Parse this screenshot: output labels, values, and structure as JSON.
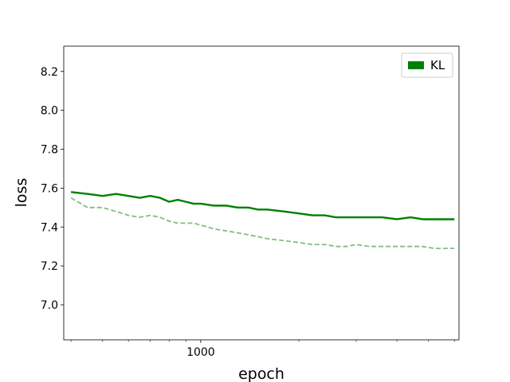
{
  "chart_data": {
    "type": "line",
    "xlabel": "epoch",
    "ylabel": "loss",
    "x_scale": "log",
    "x_range": [
      380,
      6200
    ],
    "ylim": [
      6.82,
      8.33
    ],
    "x_tick_labels": [
      {
        "value": 1000,
        "label": "1000"
      }
    ],
    "x_minor_ticks": [
      400,
      500,
      600,
      700,
      800,
      900,
      2000,
      3000,
      4000,
      5000,
      6000
    ],
    "y_ticks": [
      {
        "value": 7.0,
        "label": "7.0"
      },
      {
        "value": 7.2,
        "label": "7.2"
      },
      {
        "value": 7.4,
        "label": "7.4"
      },
      {
        "value": 7.6,
        "label": "7.6"
      },
      {
        "value": 7.8,
        "label": "7.8"
      },
      {
        "value": 8.0,
        "label": "8.0"
      },
      {
        "value": 8.2,
        "label": "8.2"
      }
    ],
    "grid": false,
    "legend": {
      "position": "top-right",
      "entries": [
        {
          "label": "KL",
          "color": "#008000"
        }
      ]
    },
    "series": [
      {
        "name": "KL",
        "color": "#008000",
        "style": "solid",
        "x": [
          400,
          450,
          500,
          550,
          600,
          650,
          700,
          750,
          800,
          850,
          900,
          950,
          1000,
          1100,
          1200,
          1300,
          1400,
          1500,
          1600,
          1800,
          2000,
          2200,
          2400,
          2600,
          2800,
          3000,
          3300,
          3600,
          4000,
          4400,
          4800,
          5200,
          5600,
          6000
        ],
        "y": [
          7.58,
          7.57,
          7.56,
          7.57,
          7.56,
          7.55,
          7.56,
          7.55,
          7.53,
          7.54,
          7.53,
          7.52,
          7.52,
          7.51,
          7.51,
          7.5,
          7.5,
          7.49,
          7.49,
          7.48,
          7.47,
          7.46,
          7.46,
          7.45,
          7.45,
          7.45,
          7.45,
          7.45,
          7.44,
          7.45,
          7.44,
          7.44,
          7.44,
          7.44
        ]
      },
      {
        "name": "",
        "color": "#7fbf7f",
        "style": "dashed",
        "x": [
          400,
          450,
          500,
          550,
          600,
          650,
          700,
          750,
          800,
          850,
          900,
          950,
          1000,
          1100,
          1200,
          1300,
          1400,
          1500,
          1600,
          1800,
          2000,
          2200,
          2400,
          2600,
          2800,
          3000,
          3300,
          3600,
          4000,
          4400,
          4800,
          5200,
          5600,
          6000
        ],
        "y": [
          7.55,
          7.5,
          7.5,
          7.48,
          7.46,
          7.45,
          7.46,
          7.45,
          7.43,
          7.42,
          7.42,
          7.42,
          7.41,
          7.39,
          7.38,
          7.37,
          7.36,
          7.35,
          7.34,
          7.33,
          7.32,
          7.31,
          7.31,
          7.3,
          7.3,
          7.31,
          7.3,
          7.3,
          7.3,
          7.3,
          7.3,
          7.29,
          7.29,
          7.29
        ]
      }
    ]
  }
}
